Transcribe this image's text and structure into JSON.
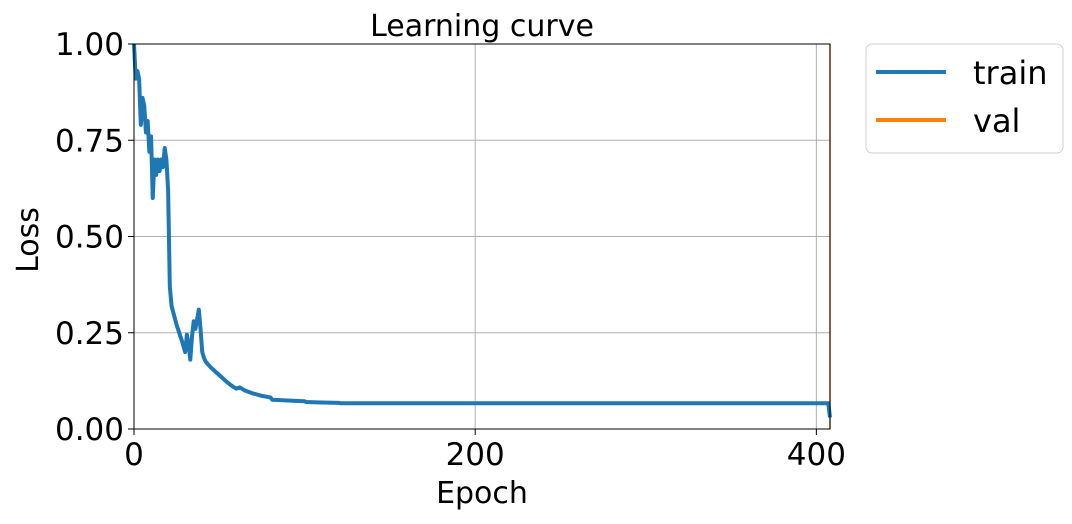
{
  "chart_data": {
    "type": "line",
    "title": "Learning curve",
    "xlabel": "Epoch",
    "ylabel": "Loss",
    "xlim": [
      0,
      408
    ],
    "ylim": [
      0.0,
      1.0
    ],
    "x_ticks": [
      0,
      200,
      400
    ],
    "x_tick_labels": [
      "0",
      "200",
      "400"
    ],
    "y_ticks": [
      0.0,
      0.25,
      0.5,
      0.75,
      1.0
    ],
    "y_tick_labels": [
      "0.00",
      "0.25",
      "0.50",
      "0.75",
      "1.00"
    ],
    "grid": true,
    "legend_position": "outside-top-right",
    "series": [
      {
        "name": "train",
        "color": "#1f77b4",
        "x": [
          0,
          1,
          2,
          3,
          4,
          5,
          6,
          7,
          8,
          9,
          10,
          11,
          12,
          13,
          14,
          15,
          16,
          17,
          18,
          19,
          20,
          21,
          22,
          25,
          28,
          30,
          31,
          32,
          33,
          34,
          35,
          36,
          37,
          38,
          39,
          40,
          41,
          42,
          45,
          50,
          55,
          58,
          60,
          62,
          65,
          70,
          75,
          80,
          81,
          90,
          100,
          101,
          110,
          120,
          121,
          150,
          200,
          250,
          300,
          350,
          400,
          405,
          407,
          408
        ],
        "y": [
          1.0,
          0.91,
          0.93,
          0.91,
          0.79,
          0.86,
          0.84,
          0.77,
          0.8,
          0.72,
          0.76,
          0.6,
          0.7,
          0.66,
          0.7,
          0.67,
          0.7,
          0.68,
          0.73,
          0.7,
          0.62,
          0.37,
          0.32,
          0.27,
          0.23,
          0.2,
          0.245,
          0.22,
          0.18,
          0.24,
          0.28,
          0.26,
          0.285,
          0.31,
          0.26,
          0.2,
          0.185,
          0.175,
          0.16,
          0.14,
          0.12,
          0.11,
          0.105,
          0.108,
          0.1,
          0.092,
          0.086,
          0.082,
          0.076,
          0.074,
          0.072,
          0.07,
          0.069,
          0.068,
          0.067,
          0.067,
          0.067,
          0.067,
          0.067,
          0.067,
          0.067,
          0.067,
          0.067,
          0.03
        ]
      },
      {
        "name": "val",
        "color": "#ff7f0e",
        "x": [
          408,
          408
        ],
        "y": [
          0.0,
          1.0
        ]
      }
    ]
  }
}
